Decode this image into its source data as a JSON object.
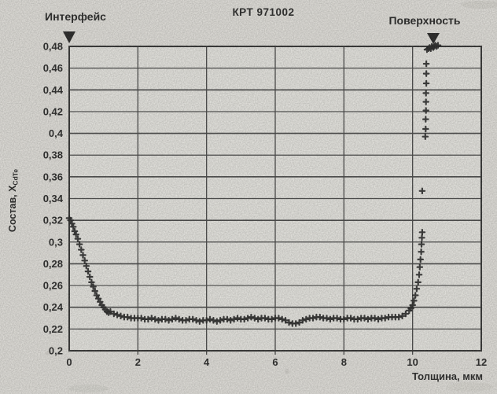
{
  "page": {
    "paper_color": "#e8e6e1",
    "plot_background": "#edece7",
    "grid_color": "#3f3f3f",
    "border_color": "#2b2b2b",
    "marker_color": "#1d1d1d",
    "text_color": "#1b1b1b"
  },
  "chart_data": {
    "type": "scatter",
    "title": "КРТ 971002",
    "xlabel": "Толщина, мкм",
    "ylabel_prefix": "Состав, X",
    "ylabel_subscript": "CdTe",
    "xlim": [
      0,
      12
    ],
    "ylim": [
      0.2,
      0.48
    ],
    "grid": true,
    "marker": "plus",
    "x_ticks": [
      0,
      2,
      4,
      6,
      8,
      10,
      12
    ],
    "x_tick_labels": [
      "0",
      "2",
      "4",
      "6",
      "8",
      "10",
      "12"
    ],
    "y_ticks": [
      0.48,
      0.46,
      0.44,
      0.42,
      0.4,
      0.38,
      0.36,
      0.34,
      0.32,
      0.3,
      0.28,
      0.26,
      0.24,
      0.22,
      0.2
    ],
    "y_tick_labels": [
      "0,48",
      "0,46",
      "0,44",
      "0,42",
      "0,4",
      "0,38",
      "0,36",
      "0,34",
      "0,32",
      "0,3",
      "0,28",
      "0,26",
      "0,24",
      "0,22",
      "0,2"
    ],
    "annotations": [
      {
        "label": "Интерфейс",
        "marker": "triangle-down",
        "x": 0
      },
      {
        "label": "Поверхность",
        "marker": "triangle-down",
        "x": 10.6
      }
    ],
    "series": [
      {
        "name": "composition-depth-profile",
        "points": [
          [
            0.0,
            0.322
          ],
          [
            0.04,
            0.32
          ],
          [
            0.08,
            0.317
          ],
          [
            0.12,
            0.314
          ],
          [
            0.16,
            0.31
          ],
          [
            0.2,
            0.307
          ],
          [
            0.25,
            0.303
          ],
          [
            0.3,
            0.298
          ],
          [
            0.35,
            0.293
          ],
          [
            0.4,
            0.288
          ],
          [
            0.45,
            0.283
          ],
          [
            0.5,
            0.278
          ],
          [
            0.55,
            0.273
          ],
          [
            0.6,
            0.268
          ],
          [
            0.65,
            0.263
          ],
          [
            0.7,
            0.259
          ],
          [
            0.75,
            0.255
          ],
          [
            0.8,
            0.251
          ],
          [
            0.85,
            0.248
          ],
          [
            0.9,
            0.245
          ],
          [
            0.95,
            0.242
          ],
          [
            1.0,
            0.24
          ],
          [
            1.05,
            0.238
          ],
          [
            1.1,
            0.236
          ],
          [
            1.15,
            0.235
          ],
          [
            1.2,
            0.236
          ],
          [
            1.3,
            0.234
          ],
          [
            1.4,
            0.233
          ],
          [
            1.5,
            0.232
          ],
          [
            1.6,
            0.231
          ],
          [
            1.7,
            0.231
          ],
          [
            1.8,
            0.23
          ],
          [
            1.9,
            0.23
          ],
          [
            2.0,
            0.23
          ],
          [
            2.1,
            0.23
          ],
          [
            2.2,
            0.229
          ],
          [
            2.3,
            0.229
          ],
          [
            2.4,
            0.23
          ],
          [
            2.5,
            0.229
          ],
          [
            2.6,
            0.228
          ],
          [
            2.7,
            0.229
          ],
          [
            2.8,
            0.229
          ],
          [
            2.9,
            0.228
          ],
          [
            3.0,
            0.229
          ],
          [
            3.1,
            0.23
          ],
          [
            3.2,
            0.229
          ],
          [
            3.3,
            0.228
          ],
          [
            3.4,
            0.228
          ],
          [
            3.5,
            0.229
          ],
          [
            3.6,
            0.229
          ],
          [
            3.7,
            0.228
          ],
          [
            3.8,
            0.227
          ],
          [
            3.9,
            0.228
          ],
          [
            4.0,
            0.228
          ],
          [
            4.1,
            0.229
          ],
          [
            4.2,
            0.228
          ],
          [
            4.3,
            0.227
          ],
          [
            4.4,
            0.228
          ],
          [
            4.5,
            0.229
          ],
          [
            4.6,
            0.229
          ],
          [
            4.7,
            0.228
          ],
          [
            4.8,
            0.229
          ],
          [
            4.9,
            0.23
          ],
          [
            5.0,
            0.229
          ],
          [
            5.1,
            0.229
          ],
          [
            5.2,
            0.23
          ],
          [
            5.3,
            0.231
          ],
          [
            5.4,
            0.23
          ],
          [
            5.5,
            0.229
          ],
          [
            5.6,
            0.23
          ],
          [
            5.7,
            0.23
          ],
          [
            5.8,
            0.229
          ],
          [
            5.9,
            0.229
          ],
          [
            6.0,
            0.23
          ],
          [
            6.1,
            0.23
          ],
          [
            6.2,
            0.229
          ],
          [
            6.3,
            0.228
          ],
          [
            6.4,
            0.226
          ],
          [
            6.5,
            0.225
          ],
          [
            6.6,
            0.225
          ],
          [
            6.7,
            0.226
          ],
          [
            6.8,
            0.228
          ],
          [
            6.9,
            0.229
          ],
          [
            7.0,
            0.23
          ],
          [
            7.1,
            0.23
          ],
          [
            7.2,
            0.231
          ],
          [
            7.3,
            0.231
          ],
          [
            7.4,
            0.23
          ],
          [
            7.5,
            0.23
          ],
          [
            7.6,
            0.229
          ],
          [
            7.7,
            0.23
          ],
          [
            7.8,
            0.23
          ],
          [
            7.9,
            0.229
          ],
          [
            8.0,
            0.229
          ],
          [
            8.1,
            0.23
          ],
          [
            8.2,
            0.23
          ],
          [
            8.3,
            0.229
          ],
          [
            8.4,
            0.229
          ],
          [
            8.5,
            0.23
          ],
          [
            8.6,
            0.23
          ],
          [
            8.7,
            0.229
          ],
          [
            8.8,
            0.23
          ],
          [
            8.9,
            0.23
          ],
          [
            9.0,
            0.229
          ],
          [
            9.1,
            0.23
          ],
          [
            9.2,
            0.23
          ],
          [
            9.3,
            0.231
          ],
          [
            9.4,
            0.231
          ],
          [
            9.5,
            0.231
          ],
          [
            9.6,
            0.231
          ],
          [
            9.7,
            0.232
          ],
          [
            9.8,
            0.234
          ],
          [
            9.9,
            0.237
          ],
          [
            9.95,
            0.239
          ],
          [
            10.0,
            0.242
          ],
          [
            10.04,
            0.246
          ],
          [
            10.08,
            0.251
          ],
          [
            10.12,
            0.257
          ],
          [
            10.16,
            0.263
          ],
          [
            10.19,
            0.27
          ],
          [
            10.21,
            0.277
          ],
          [
            10.23,
            0.284
          ],
          [
            10.25,
            0.291
          ],
          [
            10.26,
            0.298
          ],
          [
            10.27,
            0.304
          ],
          [
            10.28,
            0.309
          ],
          [
            10.28,
            0.347
          ],
          [
            10.37,
            0.397
          ],
          [
            10.38,
            0.404
          ],
          [
            10.38,
            0.413
          ],
          [
            10.39,
            0.421
          ],
          [
            10.39,
            0.429
          ],
          [
            10.39,
            0.437
          ],
          [
            10.4,
            0.446
          ],
          [
            10.4,
            0.455
          ],
          [
            10.4,
            0.464
          ],
          [
            10.42,
            0.477
          ],
          [
            10.46,
            0.478
          ],
          [
            10.5,
            0.479
          ],
          [
            10.53,
            0.478
          ],
          [
            10.56,
            0.48
          ],
          [
            10.6,
            0.479
          ],
          [
            10.63,
            0.48
          ],
          [
            10.66,
            0.481
          ],
          [
            10.7,
            0.48
          ],
          [
            10.74,
            0.481
          ]
        ]
      }
    ]
  }
}
